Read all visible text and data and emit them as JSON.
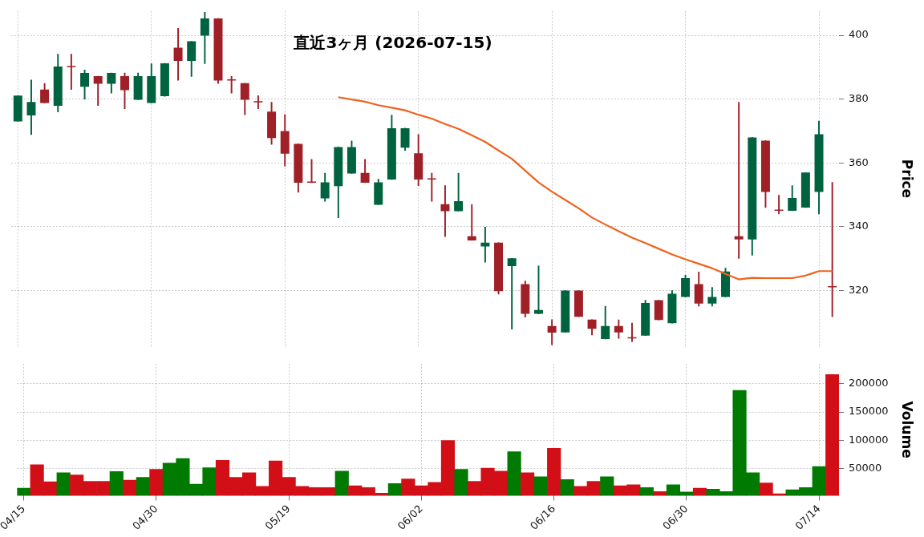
{
  "chart_data": [
    {
      "type": "candlestick",
      "title": "直近3ヶ月  (2026-07-15)",
      "ylabel": "Price",
      "categories": [
        null,
        null,
        null,
        null,
        null,
        null,
        null,
        null,
        null,
        null,
        null,
        null,
        null,
        null,
        null,
        null,
        null,
        null,
        null,
        null,
        null,
        null,
        null,
        null,
        null,
        null,
        null,
        null,
        null,
        null,
        null,
        null,
        null,
        null,
        null,
        null,
        null,
        null,
        null,
        null,
        null,
        null,
        null,
        null,
        null,
        null,
        null,
        null,
        null,
        null,
        null,
        null,
        null,
        null,
        null,
        null,
        null,
        null,
        null,
        null,
        null,
        null
      ],
      "ohlc": [
        [
          373.0,
          381.1,
          373.0,
          381.1
        ],
        [
          374.9,
          386.0,
          368.9,
          379.1
        ],
        [
          383.0,
          384.9,
          378.8,
          378.8
        ],
        [
          377.9,
          394.1,
          376.0,
          390.2
        ],
        [
          390.2,
          394.1,
          383.0,
          390.0
        ],
        [
          383.9,
          389.1,
          380.0,
          388.2
        ],
        [
          387.2,
          387.2,
          378.0,
          384.8
        ],
        [
          384.8,
          388.2,
          381.9,
          388.2
        ],
        [
          387.2,
          388.2,
          377.0,
          382.8
        ],
        [
          379.8,
          388.2,
          379.8,
          387.2
        ],
        [
          378.8,
          391.1,
          378.8,
          387.2
        ],
        [
          380.9,
          391.2,
          380.9,
          391.2
        ],
        [
          396.1,
          402.2,
          385.9,
          392.0
        ],
        [
          392.0,
          398.1,
          387.1,
          398.1
        ],
        [
          399.9,
          407.2,
          391.1,
          405.3
        ],
        [
          405.3,
          405.3,
          384.9,
          385.8
        ],
        [
          386.0,
          387.1,
          381.9,
          385.8
        ],
        [
          385.0,
          385.0,
          375.1,
          379.8
        ],
        [
          379.1,
          381.1,
          377.0,
          379.0
        ],
        [
          376.1,
          379.0,
          365.8,
          367.8
        ],
        [
          370.0,
          375.1,
          359.0,
          362.9
        ],
        [
          366.0,
          366.0,
          350.8,
          353.8
        ],
        [
          353.9,
          361.1,
          353.8,
          353.8
        ],
        [
          348.9,
          356.8,
          348.0,
          353.9
        ],
        [
          352.7,
          365.0,
          342.8,
          365.0
        ],
        [
          356.7,
          366.9,
          356.7,
          365.0
        ],
        [
          356.9,
          361.1,
          353.8,
          353.8
        ],
        [
          346.9,
          354.9,
          346.9,
          353.9
        ],
        [
          354.8,
          375.0,
          354.8,
          370.9
        ],
        [
          364.8,
          370.9,
          363.9,
          370.9
        ],
        [
          363.0,
          368.9,
          352.9,
          354.8
        ],
        [
          354.9,
          356.8,
          348.0,
          354.8
        ],
        [
          347.1,
          352.9,
          336.9,
          344.9
        ],
        [
          344.9,
          356.8,
          344.9,
          348.0
        ],
        [
          337.0,
          347.0,
          335.7,
          335.7
        ],
        [
          333.8,
          339.9,
          328.9,
          335.0
        ],
        [
          335.0,
          335.0,
          318.9,
          319.8
        ],
        [
          327.7,
          330.1,
          307.9,
          330.1
        ],
        [
          322.0,
          323.0,
          311.7,
          312.7
        ],
        [
          312.7,
          327.7,
          312.7,
          313.9
        ],
        [
          308.9,
          310.9,
          303.0,
          306.8
        ],
        [
          306.9,
          320.0,
          306.9,
          320.0
        ],
        [
          320.0,
          320.0,
          311.8,
          311.8
        ],
        [
          310.9,
          310.9,
          306.1,
          308.0
        ],
        [
          304.8,
          315.1,
          304.8,
          308.9
        ],
        [
          308.9,
          310.8,
          305.0,
          306.9
        ],
        [
          305.1,
          309.8,
          304.0,
          305.0
        ],
        [
          305.9,
          317.0,
          305.9,
          316.1
        ],
        [
          317.0,
          317.0,
          310.8,
          310.8
        ],
        [
          309.8,
          320.0,
          309.8,
          319.0
        ],
        [
          318.0,
          324.8,
          318.0,
          323.9
        ],
        [
          322.0,
          325.8,
          315.1,
          315.9
        ],
        [
          315.9,
          321.0,
          315.1,
          318.0
        ],
        [
          318.0,
          327.0,
          318.0,
          326.0
        ],
        [
          337.0,
          379.0,
          330.1,
          336.0
        ],
        [
          336.0,
          368.0,
          331.1,
          368.0
        ],
        [
          367.0,
          367.0,
          346.0,
          350.9
        ],
        [
          345.1,
          349.9,
          344.0,
          345.0
        ],
        [
          345.0,
          352.9,
          345.0,
          349.0
        ],
        [
          346.0,
          357.0,
          346.0,
          357.0
        ],
        [
          350.9,
          373.1,
          344.0,
          369.0
        ],
        [
          321.1,
          353.9,
          311.8,
          321.0
        ]
      ],
      "colors": [
        "#006340",
        "#006340",
        "#a02028",
        "#006340",
        "#a02028",
        "#006340",
        "#a02028",
        "#006340",
        "#a02028",
        "#006340",
        "#006340",
        "#006340",
        "#a02028",
        "#006340",
        "#006340",
        "#a02028",
        "#a02028",
        "#a02028",
        "#a02028",
        "#a02028",
        "#a02028",
        "#a02028",
        "#a02028",
        "#006340",
        "#006340",
        "#006340",
        "#a02028",
        "#006340",
        "#006340",
        "#006340",
        "#a02028",
        "#a02028",
        "#a02028",
        "#006340",
        "#a02028",
        "#006340",
        "#a02028",
        "#006340",
        "#a02028",
        "#006340",
        "#a02028",
        "#006340",
        "#a02028",
        "#a02028",
        "#006340",
        "#a02028",
        "#a02028",
        "#006340",
        "#a02028",
        "#006340",
        "#006340",
        "#a02028",
        "#006340",
        "#006340",
        "#a02028",
        "#006340",
        "#a02028",
        "#a02028",
        "#006340",
        "#006340",
        "#006340",
        "#a02028"
      ],
      "series": [
        {
          "type": "line",
          "color": "#f0621e",
          "values": [
            null,
            null,
            null,
            null,
            null,
            null,
            null,
            null,
            null,
            null,
            null,
            null,
            null,
            null,
            null,
            null,
            null,
            null,
            null,
            null,
            null,
            null,
            null,
            null,
            380.6,
            379.9,
            379.2,
            378.1,
            377.3,
            376.5,
            375.1,
            373.9,
            372.2,
            370.7,
            368.7,
            366.6,
            363.9,
            361.3,
            357.6,
            353.9,
            351.0,
            348.4,
            345.8,
            342.9,
            340.7,
            338.6,
            336.6,
            334.9,
            333.1,
            331.3,
            329.8,
            328.4,
            327.0,
            325.2,
            323.5,
            324.0,
            323.9,
            323.9,
            323.9,
            324.7,
            326.1,
            326.1
          ]
        }
      ],
      "ylim": [
        302.5,
        407.6
      ],
      "yticks": [
        320,
        340,
        360,
        380,
        400
      ],
      "grid": true,
      "tick_labels": "y"
    },
    {
      "type": "bar",
      "ylabel": "Volume",
      "categories": [
        "04/15",
        null,
        null,
        null,
        null,
        null,
        null,
        null,
        null,
        null,
        "04/30",
        null,
        null,
        null,
        null,
        null,
        null,
        null,
        null,
        null,
        "05/19",
        null,
        null,
        null,
        null,
        null,
        null,
        null,
        null,
        null,
        "06/02",
        null,
        null,
        null,
        null,
        null,
        null,
        null,
        null,
        null,
        "06/16",
        null,
        null,
        null,
        null,
        null,
        null,
        null,
        null,
        null,
        "06/30",
        null,
        null,
        null,
        null,
        null,
        null,
        null,
        null,
        null,
        "07/14",
        null
      ],
      "values": [
        16000,
        57000,
        27000,
        43000,
        39000,
        28000,
        28000,
        45000,
        30000,
        35000,
        49000,
        60000,
        68000,
        23000,
        52000,
        65000,
        35000,
        43000,
        19000,
        64000,
        35000,
        19000,
        17000,
        17000,
        46000,
        20000,
        17000,
        7000,
        24000,
        32000,
        20000,
        26000,
        100000,
        49000,
        28000,
        51000,
        46000,
        80000,
        43000,
        36000,
        86000,
        31000,
        19000,
        28000,
        36000,
        20000,
        22000,
        17000,
        10000,
        22000,
        9000,
        16000,
        14000,
        10000,
        188000,
        43000,
        25000,
        6000,
        13000,
        17000,
        54000,
        216000
      ],
      "colors": [
        "#007a00",
        "#d20f17",
        "#d20f17",
        "#007a00",
        "#d20f17",
        "#d20f17",
        "#d20f17",
        "#007a00",
        "#d20f17",
        "#007a00",
        "#d20f17",
        "#007a00",
        "#007a00",
        "#007a00",
        "#007a00",
        "#d20f17",
        "#d20f17",
        "#d20f17",
        "#d20f17",
        "#d20f17",
        "#d20f17",
        "#d20f17",
        "#d20f17",
        "#d20f17",
        "#007a00",
        "#d20f17",
        "#d20f17",
        "#d20f17",
        "#007a00",
        "#d20f17",
        "#d20f17",
        "#d20f17",
        "#d20f17",
        "#007a00",
        "#d20f17",
        "#d20f17",
        "#d20f17",
        "#007a00",
        "#d20f17",
        "#007a00",
        "#d20f17",
        "#007a00",
        "#d20f17",
        "#d20f17",
        "#007a00",
        "#d20f17",
        "#d20f17",
        "#007a00",
        "#d20f17",
        "#007a00",
        "#007a00",
        "#d20f17",
        "#007a00",
        "#007a00",
        "#007a00",
        "#007a00",
        "#d20f17",
        "#d20f17",
        "#007a00",
        "#007a00",
        "#007a00",
        "#d20f17"
      ],
      "ylim": [
        2600,
        235000
      ],
      "yticks": [
        50000,
        100000,
        150000,
        200000
      ],
      "grid": true
    }
  ]
}
